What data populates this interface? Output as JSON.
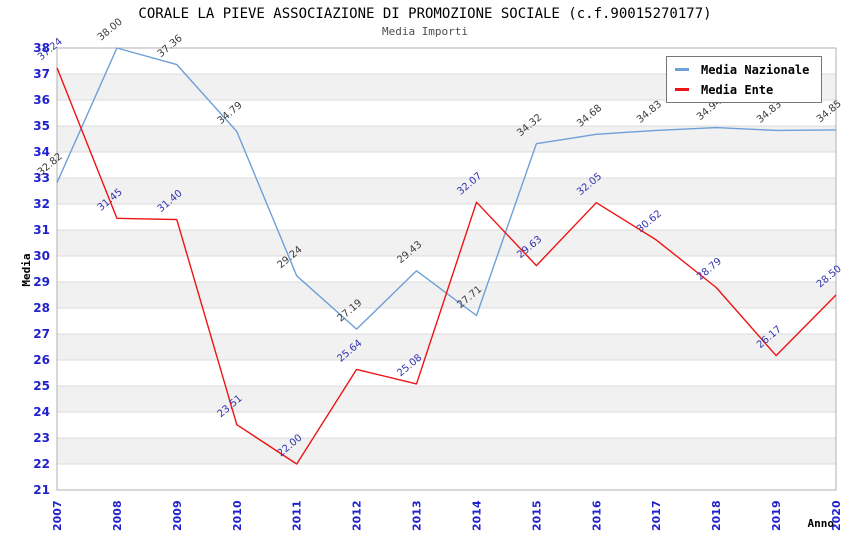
{
  "header": {
    "title": "CORALE LA PIEVE ASSOCIAZIONE DI PROMOZIONE SOCIALE (c.f.90015270177)",
    "subtitle": "Media Importi"
  },
  "chart_data": {
    "type": "line",
    "title": "CORALE LA PIEVE ASSOCIAZIONE DI PROMOZIONE SOCIALE (c.f.90015270177)",
    "subtitle": "Media Importi",
    "xlabel": "Anno",
    "ylabel": "Media",
    "categories": [
      "2007",
      "2008",
      "2009",
      "2010",
      "2011",
      "2012",
      "2013",
      "2014",
      "2015",
      "2016",
      "2017",
      "2018",
      "2019",
      "2020"
    ],
    "series": [
      {
        "name": "Media Nazionale",
        "color": "#6f9fd8",
        "label_color": "#3c3c3c",
        "values": [
          32.82,
          38.0,
          37.36,
          34.79,
          29.24,
          27.19,
          29.43,
          27.71,
          34.32,
          34.68,
          34.83,
          34.94,
          34.83,
          34.85
        ]
      },
      {
        "name": "Media Ente",
        "color": "#ee1414",
        "label_color": "#3434ad",
        "values": [
          37.24,
          31.45,
          31.4,
          23.51,
          22.0,
          25.64,
          25.08,
          32.07,
          29.63,
          32.05,
          30.62,
          28.79,
          26.17,
          28.5
        ]
      }
    ],
    "ylim": [
      21,
      38
    ],
    "y_step": 1,
    "grid": "horizontal-only",
    "legend_position": "top-right",
    "tick_color": "#2222cc",
    "axis_title_color": "#000000",
    "band_color": "#f1f1f1",
    "grid_color": "#dcdcdc",
    "border_color": "#b0b0b0"
  }
}
